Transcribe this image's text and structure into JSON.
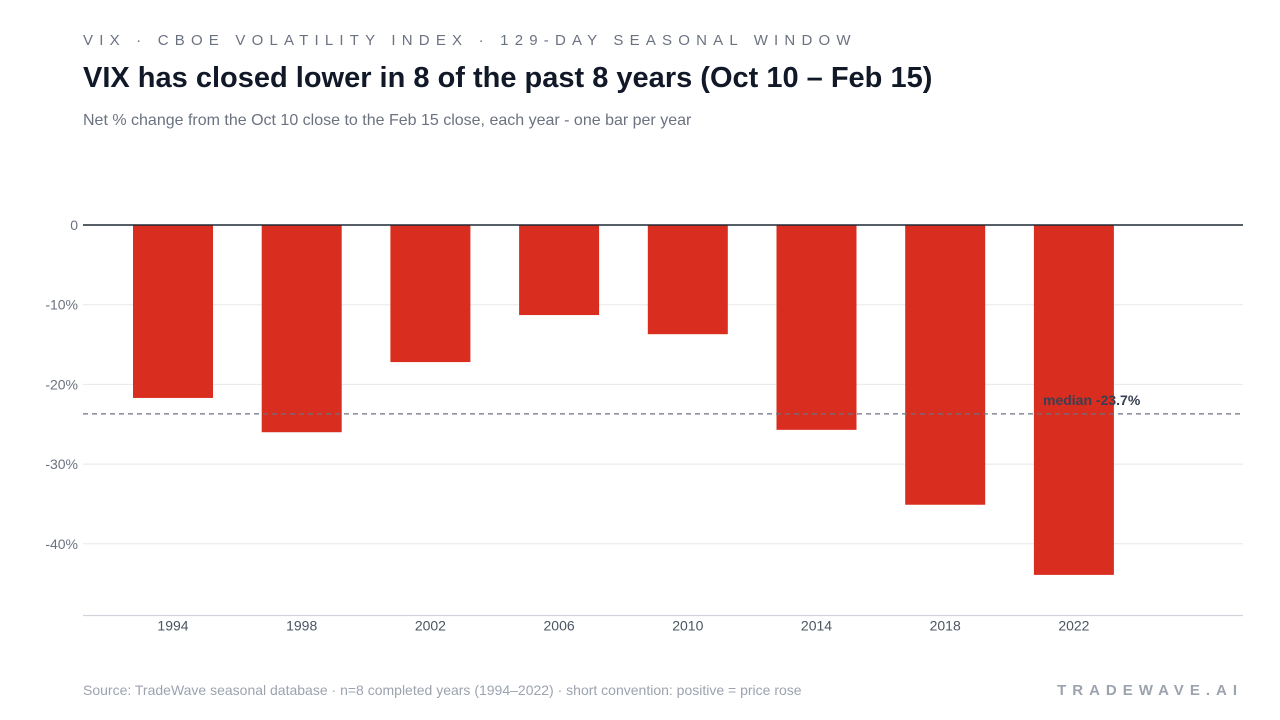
{
  "header": {
    "eyebrow": "VIX · CBOE VOLATILITY INDEX · 129-DAY SEASONAL WINDOW",
    "title": "VIX has closed lower in 8 of the past 8 years (Oct 10 – Feb 15)",
    "subtitle": "Net % change from the Oct 10 close to the Feb 15 close, each year - one bar per year"
  },
  "footer": {
    "source": "Source: TradeWave seasonal database · n=8 completed years (1994–2022) · short convention: positive = price rose",
    "brand": "TRADEWAVE.AI"
  },
  "chart_data": {
    "type": "bar",
    "categories": [
      "1994",
      "1998",
      "2002",
      "2006",
      "2010",
      "2014",
      "2018",
      "2022"
    ],
    "values": [
      -21.7,
      -26.0,
      -17.2,
      -11.3,
      -13.7,
      -25.7,
      -35.1,
      -43.9
    ],
    "bar_color": "#d92d20",
    "ylim": [
      -49,
      0
    ],
    "yticks": [
      0,
      -10,
      -20,
      -30,
      -40
    ],
    "ytick_labels": [
      "0",
      "-10%",
      "-20%",
      "-30%",
      "-40%"
    ],
    "median": {
      "value": -23.7,
      "label": "median -23.7%"
    },
    "grid": true,
    "legend": "none"
  }
}
